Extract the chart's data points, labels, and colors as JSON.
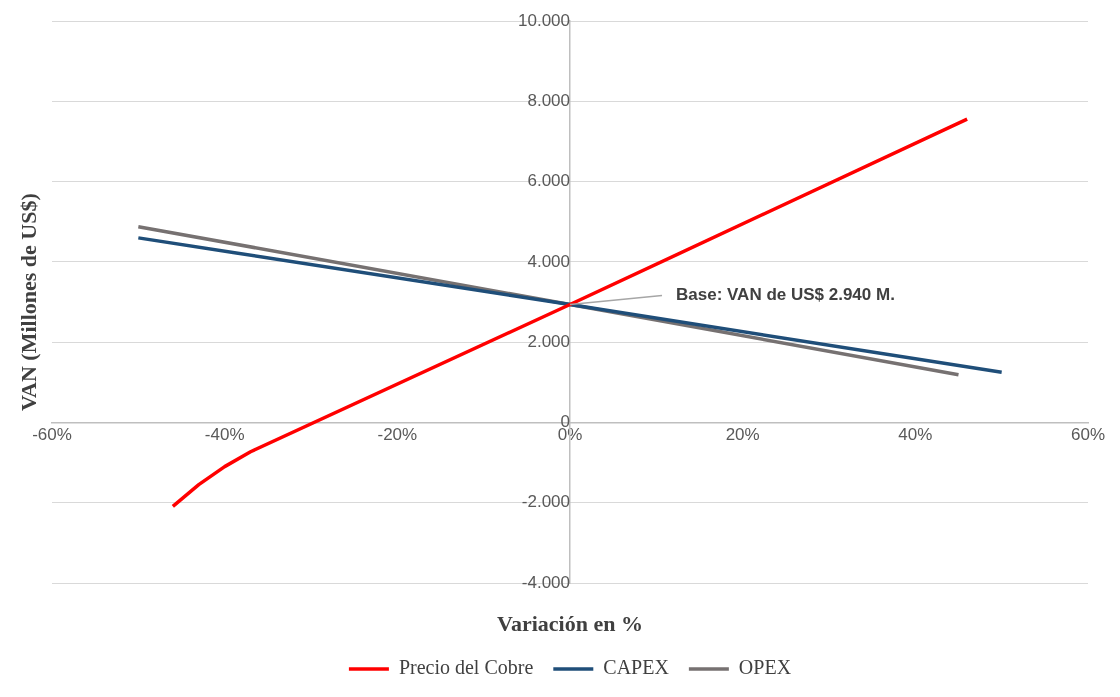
{
  "chart_data": {
    "type": "line",
    "xlabel": "Variación en %",
    "ylabel": "VAN (Millones de US$)",
    "xlim": [
      -60,
      60
    ],
    "xticks": [
      {
        "value": -60,
        "label": "-60%"
      },
      {
        "value": -40,
        "label": "-40%"
      },
      {
        "value": -20,
        "label": "-20%"
      },
      {
        "value": 0,
        "label": "0%"
      },
      {
        "value": 20,
        "label": "20%"
      },
      {
        "value": 40,
        "label": "40%"
      },
      {
        "value": 60,
        "label": "60%"
      }
    ],
    "ylim": [
      -4000,
      10000
    ],
    "yticks": [
      {
        "value": -4000,
        "label": "-4.000"
      },
      {
        "value": -2000,
        "label": "-2.000"
      },
      {
        "value": 0,
        "label": "0"
      },
      {
        "value": 2000,
        "label": "2.000"
      },
      {
        "value": 4000,
        "label": "4.000"
      },
      {
        "value": 6000,
        "label": "6.000"
      },
      {
        "value": 8000,
        "label": "8.000"
      },
      {
        "value": 10000,
        "label": "10.000"
      }
    ],
    "grid": "y",
    "legend": "bottom",
    "marker": "none",
    "line_style": "solid",
    "series": [
      {
        "name": "Precio del Cobre",
        "color": "#ff0000",
        "x": [
          -46,
          -43,
          -40,
          -37,
          0,
          46
        ],
        "values": [
          -2090,
          -1550,
          -1100,
          -730,
          2940,
          7560
        ]
      },
      {
        "name": "CAPEX",
        "color": "#1f4e79",
        "x": [
          -50,
          0,
          50
        ],
        "values": [
          4600,
          2940,
          1250
        ]
      },
      {
        "name": "OPEX",
        "color": "#767171",
        "x": [
          -50,
          0,
          45
        ],
        "values": [
          4880,
          2940,
          1190
        ]
      }
    ],
    "annotations": [
      {
        "text": "Base: VAN de US$ 2.940 M.",
        "x": 0,
        "y": 2940
      }
    ]
  }
}
